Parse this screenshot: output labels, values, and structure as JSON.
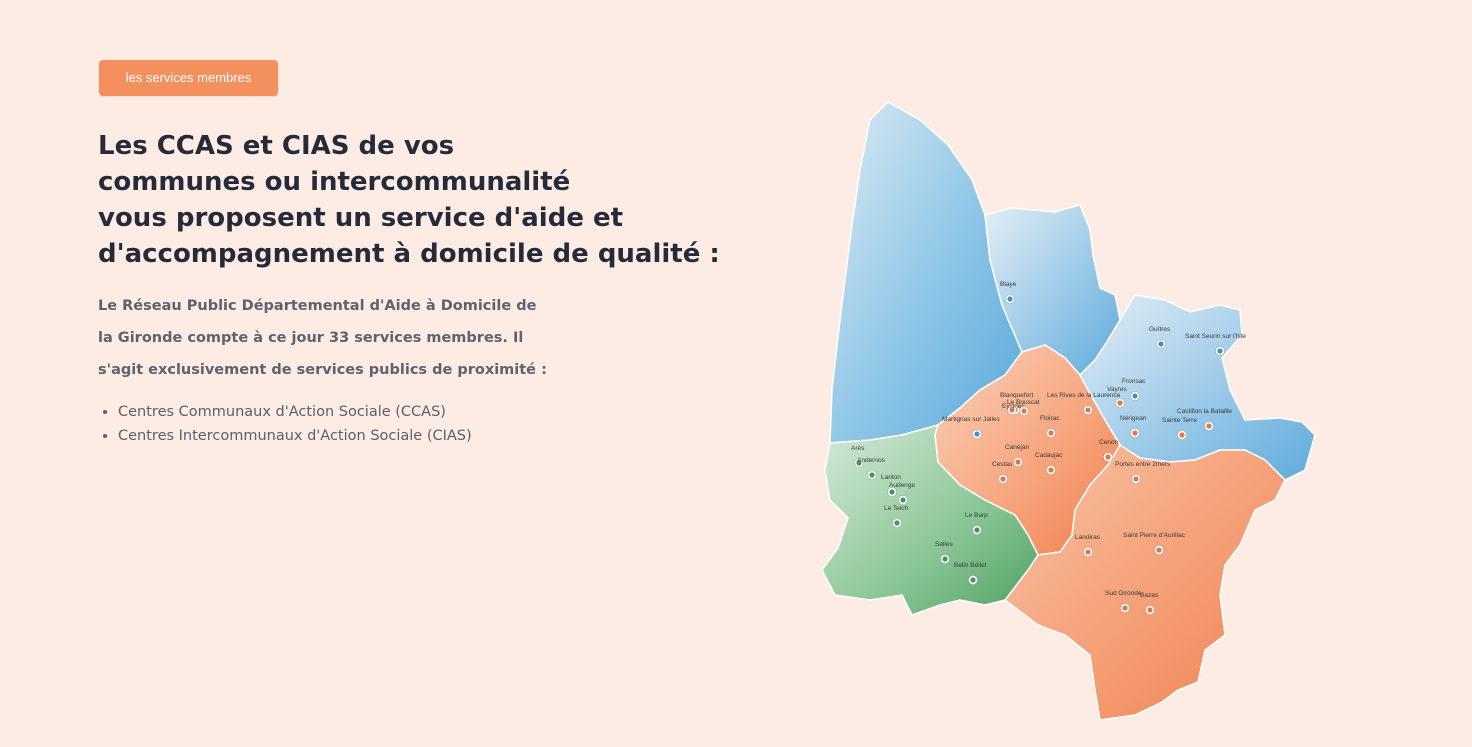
{
  "badge": {
    "label": "les services membres"
  },
  "title": {
    "line1": "Les CCAS et CIAS de vos",
    "line2": "communes ou intercommunalité",
    "line3": "vous proposent un service d'aide et",
    "line4": "d'accompagnement à domicile de qualité :"
  },
  "intro": {
    "line1": "Le Réseau Public Départemental d'Aide à Domicile de",
    "line2": "la Gironde compte à ce jour 33 services membres. Il",
    "line3": "s'agit exclusivement de services publics de proximité :"
  },
  "bullets": [
    "Centres Communaux d'Action Sociale (CCAS)",
    "Centres Intercommunaux d'Action Sociale (CIAS)"
  ],
  "map": {
    "colors": {
      "blue": "#6ab4df",
      "orange": "#f38a5b",
      "green": "#5fae73",
      "background": "#fdece4"
    },
    "cities": [
      "Blaye",
      "Guîtres",
      "Saint Seurin sur l'Isle",
      "Blanquefort",
      "Fronsac",
      "Vayres",
      "Eysines",
      "Le Bouscat",
      "Les Rives de la Laurence",
      "Martignas sur Jalles",
      "Floirac",
      "Nérigean",
      "Castillon la Bataille",
      "Sainte Terre",
      "Canéjan",
      "Cenon",
      "Cadaujac",
      "Cestas",
      "Portes entre 2mers",
      "Arès",
      "Andernos",
      "Lanton",
      "Audenge",
      "Le Teich",
      "Le Barp",
      "Salles",
      "Belin Béliet",
      "Landiras",
      "Saint Pierre d'Aurillac",
      "Sud Gironde",
      "Bazas"
    ]
  }
}
